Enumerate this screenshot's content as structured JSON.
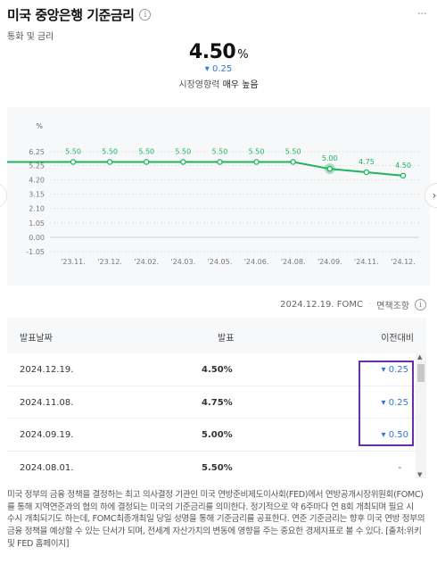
{
  "header": {
    "title": "미국 중앙은행 기준금리",
    "info_icon": "i",
    "subtitle": "통화 및 금리",
    "more_icon": "···"
  },
  "rate": {
    "value": "4.50",
    "unit": "%",
    "change": "▾ 0.25",
    "impact_label": "시장영향력",
    "impact_value": "매우 높음"
  },
  "chart_data": {
    "type": "line",
    "x": [
      "'23.11.",
      "'23.12.",
      "'24.02.",
      "'24.03.",
      "'24.05.",
      "'24.06.",
      "'24.08.",
      "'24.09.",
      "'24.11.",
      "'24.12."
    ],
    "series": [
      {
        "values": [
          5.5,
          5.5,
          5.5,
          5.5,
          5.5,
          5.5,
          5.5,
          5.0,
          4.75,
          4.5
        ]
      }
    ],
    "data_labels": [
      "5.50",
      "5.50",
      "5.50",
      "5.50",
      "5.50",
      "5.50",
      "5.50",
      "5.00",
      "4.75",
      "4.50"
    ],
    "unit_label": "%",
    "yticks": [
      "6.25",
      "5.25",
      "4.20",
      "3.15",
      "2.10",
      "1.05",
      "0.00",
      "-1.05"
    ],
    "ylim": [
      -1.05,
      6.25
    ],
    "grid": true,
    "line_color": "#1db45a",
    "highlight_index": 7
  },
  "nav": {
    "prev": "‹",
    "next": "›"
  },
  "meta": {
    "date_source": "2024.12.19. FOMC",
    "disclaimer": "면책조항",
    "info_icon": "i"
  },
  "table": {
    "headers": [
      "발표날짜",
      "발표",
      "이전대비"
    ],
    "rows": [
      {
        "date": "2024.12.19.",
        "value": "4.50%",
        "change": "▾ 0.25"
      },
      {
        "date": "2024.11.08.",
        "value": "4.75%",
        "change": "▾ 0.25"
      },
      {
        "date": "2024.09.19.",
        "value": "5.00%",
        "change": "▾ 0.50"
      },
      {
        "date": "2024.08.01.",
        "value": "5.50%",
        "change": "-"
      }
    ],
    "scroll_up": "▲",
    "scroll_down": "▼"
  },
  "description": "미국 정부의 금융 정책을 결정하는 최고 의사결정 기관인 미국 연방준비제도이사회(FED)에서 연방공개시장위원회(FOMC)를 통해 지역연준과의 협의 하에 결정되는 미국의 기준금리를 의미한다. 정기적으로 약 6주마다 연 8회 개최되며 필요 시 수시 개최되기도 하는데, FOMC최종개최일 당일 성명을 통해 기준금리를 공표한다. 연준 기준금리는 향후 미국 연방 정부의 금융 정책을 예상할 수 있는 단서가 되며, 전세계 자산가치의 변동에 영향을 주는 중요한 경제지표로 볼 수 있다. [출처:위키 및 FED 홈페이지]",
  "colors": {
    "accent_blue": "#3575d8",
    "line_green": "#1db45a",
    "highlight_purple": "#6a2fa8"
  }
}
